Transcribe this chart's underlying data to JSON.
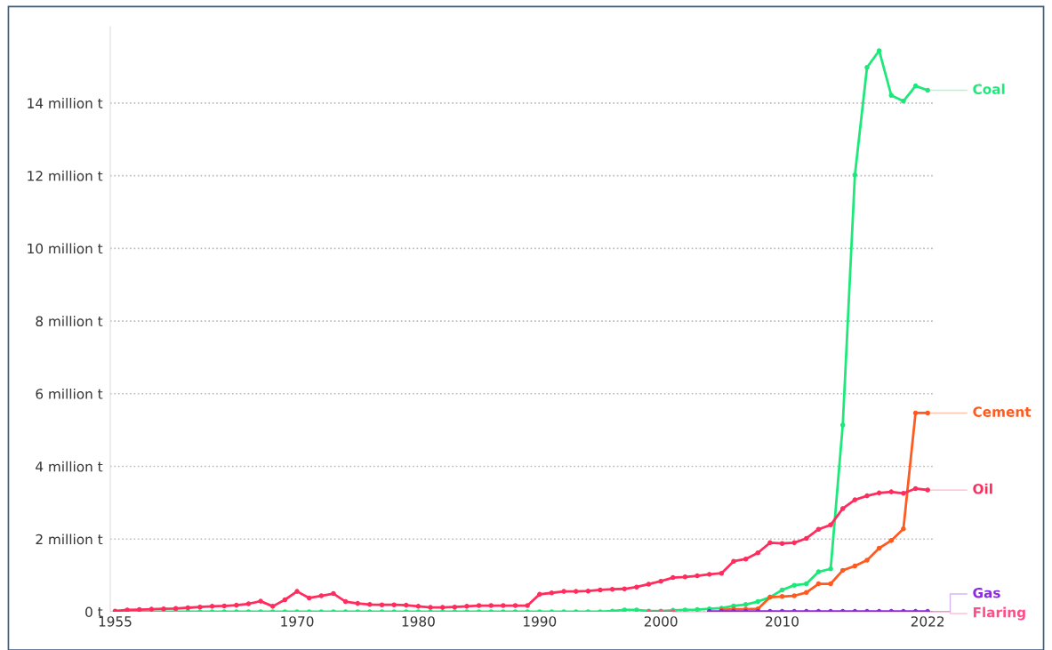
{
  "chart_data": {
    "type": "line",
    "x": [
      1955,
      1956,
      1957,
      1958,
      1959,
      1960,
      1961,
      1962,
      1963,
      1964,
      1965,
      1966,
      1967,
      1968,
      1969,
      1970,
      1971,
      1972,
      1973,
      1974,
      1975,
      1976,
      1977,
      1978,
      1979,
      1980,
      1981,
      1982,
      1983,
      1984,
      1985,
      1986,
      1987,
      1988,
      1989,
      1990,
      1991,
      1992,
      1993,
      1994,
      1995,
      1996,
      1997,
      1998,
      1999,
      2000,
      2001,
      2002,
      2003,
      2004,
      2005,
      2006,
      2007,
      2008,
      2009,
      2010,
      2011,
      2012,
      2013,
      2014,
      2015,
      2016,
      2017,
      2018,
      2019,
      2020,
      2021,
      2022
    ],
    "series": [
      {
        "name": "Coal",
        "color": "#1de87a",
        "values": [
          0,
          0,
          0,
          0,
          0,
          0,
          0,
          0,
          0,
          0,
          0,
          0,
          0,
          0,
          0,
          0,
          0,
          0,
          0,
          0,
          0,
          0,
          0,
          0,
          0,
          0,
          0,
          0,
          0,
          0,
          0,
          0,
          0,
          0,
          0,
          0,
          0,
          0,
          0,
          0,
          0,
          0.02,
          0.05,
          0.05,
          0.02,
          0.02,
          0.04,
          0.05,
          0.06,
          0.08,
          0.1,
          0.16,
          0.2,
          0.28,
          0.4,
          0.6,
          0.73,
          0.77,
          1.1,
          1.18,
          5.14,
          12.02,
          14.98,
          15.44,
          14.21,
          14.05,
          14.47,
          14.35
        ]
      },
      {
        "name": "Cement",
        "color": "#ff5a1f",
        "values": [
          null,
          null,
          null,
          null,
          null,
          null,
          null,
          null,
          null,
          null,
          null,
          null,
          null,
          null,
          null,
          null,
          null,
          null,
          null,
          null,
          null,
          null,
          null,
          null,
          null,
          null,
          null,
          null,
          null,
          null,
          null,
          null,
          null,
          null,
          null,
          null,
          null,
          null,
          null,
          null,
          null,
          null,
          null,
          null,
          null,
          null,
          null,
          null,
          null,
          null,
          0.05,
          0.07,
          0.07,
          0.08,
          0.4,
          0.42,
          0.44,
          0.53,
          0.77,
          0.77,
          1.14,
          1.26,
          1.42,
          1.75,
          1.96,
          2.28,
          5.47,
          5.47
        ]
      },
      {
        "name": "Oil",
        "color": "#ff2d5e",
        "values": [
          0.02,
          0.05,
          0.06,
          0.07,
          0.08,
          0.09,
          0.11,
          0.13,
          0.15,
          0.16,
          0.18,
          0.22,
          0.29,
          0.15,
          0.33,
          0.56,
          0.38,
          0.44,
          0.5,
          0.28,
          0.23,
          0.2,
          0.19,
          0.19,
          0.18,
          0.15,
          0.12,
          0.12,
          0.13,
          0.15,
          0.17,
          0.17,
          0.17,
          0.17,
          0.17,
          0.48,
          0.52,
          0.56,
          0.56,
          0.57,
          0.6,
          0.62,
          0.63,
          0.68,
          0.76,
          0.84,
          0.94,
          0.96,
          0.99,
          1.03,
          1.06,
          1.39,
          1.45,
          1.62,
          1.9,
          1.88,
          1.9,
          2.02,
          2.27,
          2.39,
          2.84,
          3.08,
          3.19,
          3.27,
          3.3,
          3.26,
          3.39,
          3.35
        ]
      },
      {
        "name": "Gas",
        "color": "#8a2be2",
        "values": [
          null,
          null,
          null,
          null,
          null,
          null,
          null,
          null,
          null,
          null,
          null,
          null,
          null,
          null,
          null,
          null,
          null,
          null,
          null,
          null,
          null,
          null,
          null,
          null,
          null,
          null,
          null,
          null,
          null,
          null,
          null,
          null,
          null,
          null,
          null,
          null,
          null,
          null,
          null,
          null,
          null,
          null,
          null,
          null,
          null,
          null,
          null,
          null,
          null,
          0.01,
          0.01,
          0.01,
          0.01,
          0.01,
          0.01,
          0.01,
          0.01,
          0.01,
          0.01,
          0.01,
          0.01,
          0.01,
          0.01,
          0.01,
          0.01,
          0.01,
          0.01,
          0.01
        ]
      },
      {
        "name": "Flaring",
        "color": "#ff4f8b",
        "values": [
          null,
          null,
          null,
          null,
          null,
          null,
          null,
          null,
          null,
          null,
          null,
          null,
          null,
          null,
          null,
          null,
          null,
          null,
          null,
          null,
          null,
          null,
          null,
          null,
          null,
          null,
          null,
          null,
          null,
          null,
          null,
          null,
          null,
          null,
          null,
          null,
          null,
          null,
          null,
          null,
          null,
          null,
          null,
          null,
          0,
          0,
          0,
          null,
          null,
          null,
          null,
          null,
          null,
          null,
          null,
          null,
          null,
          null,
          null,
          null,
          null,
          null,
          null,
          null,
          null,
          null,
          null,
          null
        ]
      }
    ],
    "xlim": [
      1954.6,
      2022.5
    ],
    "xticks": [
      1955,
      1970,
      1980,
      1990,
      2000,
      2010,
      2022
    ],
    "ylim": [
      0,
      16.1
    ],
    "yticks": [
      {
        "value": 0,
        "label": "0 t"
      },
      {
        "value": 2,
        "label": "2 million t"
      },
      {
        "value": 4,
        "label": "4 million t"
      },
      {
        "value": 6,
        "label": "6 million t"
      },
      {
        "value": 8,
        "label": "8 million t"
      },
      {
        "value": 10,
        "label": "10 million t"
      },
      {
        "value": 12,
        "label": "12 million t"
      },
      {
        "value": 14,
        "label": "14 million t"
      }
    ],
    "grid": "y",
    "legend": "right",
    "marker": "circle",
    "line_style": "solid"
  }
}
